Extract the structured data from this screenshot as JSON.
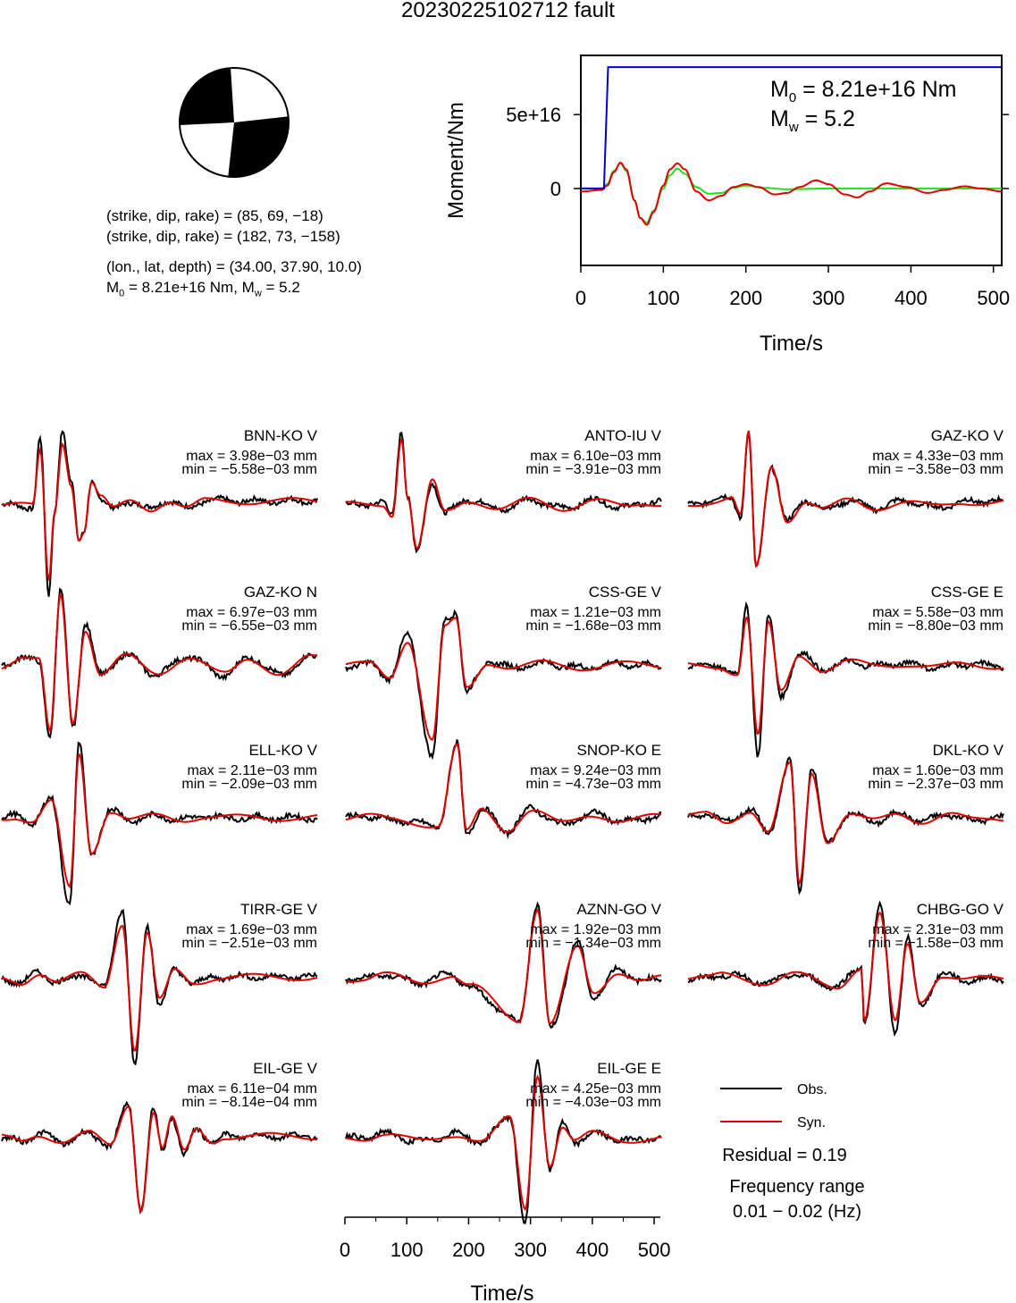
{
  "title": "20230225102712 fault",
  "focal": {
    "line1": "(strike, dip, rake) = (85, 69, −18)",
    "line2": "(strike, dip, rake) = (182, 73, −158)",
    "line3": "(lon., lat, depth) = (34.00, 37.90, 10.0)",
    "m0_text": "M",
    "m0_sub": "0",
    "m0_rest": " = 8.21e+16 Nm, M",
    "mw_sub": "w",
    "mw_rest": " = 5.2"
  },
  "moment_plot": {
    "ylabel": "Moment/Nm",
    "xlabel": "Time/s",
    "m0_label": "M",
    "m0_sub": "0",
    "m0_value": " = 8.21e+16 Nm",
    "mw_label": "M",
    "mw_sub": "w",
    "mw_value": " = 5.2"
  },
  "waveforms_xlabel": "Time/s",
  "legend": {
    "obs": "Obs.",
    "syn": "Syn.",
    "residual": "Residual = 0.19",
    "freq_label": "Frequency range",
    "freq_value": "0.01 − 0.02 (Hz)"
  },
  "colors": {
    "obs": "#000000",
    "syn": "#e00000",
    "moment": "#0000cc",
    "green": "#22dd22"
  },
  "chart_data": [
    {
      "type": "line",
      "title": "",
      "xlabel": "Time/s",
      "ylabel": "Moment/Nm",
      "xlim": [
        0,
        510
      ],
      "ylim": [
        -5.2e+16,
        9e+16
      ],
      "xticks": [
        0,
        100,
        200,
        300,
        400,
        500
      ],
      "yticks": [
        0,
        5e+16
      ],
      "ytick_labels": [
        "0",
        "5e+16"
      ],
      "series": [
        {
          "color": "#0000cc",
          "x": [
            0,
            28,
            33,
            510
          ],
          "y": [
            0,
            0,
            8.21e+16,
            8.21e+16
          ]
        },
        {
          "color": "#e00000",
          "x": [
            0,
            25,
            32,
            40,
            48,
            55,
            65,
            72,
            80,
            88,
            100,
            108,
            117,
            126,
            140,
            155,
            170,
            185,
            200,
            215,
            235,
            250,
            265,
            285,
            300,
            320,
            335,
            350,
            370,
            395,
            420,
            440,
            465,
            485,
            510
          ],
          "y": [
            -2000000000000000.0,
            -1000000000000000.0,
            2000000000000000.0,
            1.1e+16,
            1.75e+16,
            1.3e+16,
            -8000000000000000.0,
            -2e+16,
            -2.45e+16,
            -1.6e+16,
            2000000000000000.0,
            1.3e+16,
            1.7e+16,
            1.3e+16,
            -2000000000000000.0,
            -8000000000000000.0,
            -5000000000000000.0,
            1000000000000000.0,
            3000000000000000.0,
            1000000000000000.0,
            -4000000000000000.0,
            -3000000000000000.0,
            1000000000000000.0,
            5500000000000000.0,
            3000000000000000.0,
            -4000000000000000.0,
            -6000000000000000.0,
            -2000000000000000.0,
            3500000000000000.0,
            1000000000000000.0,
            -3000000000000000.0,
            -1000000000000000.0,
            1500000000000000.0,
            0.0,
            -2000000000000000.0
          ]
        },
        {
          "color": "#22dd22",
          "x": [
            0,
            25,
            32,
            40,
            48,
            55,
            65,
            72,
            80,
            88,
            100,
            108,
            117,
            126,
            140,
            155,
            170,
            185,
            200,
            220,
            250,
            300,
            510
          ],
          "y": [
            0,
            0,
            3000000000000000.0,
            1.2e+16,
            1.7e+16,
            1.2e+16,
            -8000000000000000.0,
            -2e+16,
            -2.3e+16,
            -1.5e+16,
            0.0,
            9000000000000000.0,
            1.35e+16,
            1e+16,
            1000000000000000.0,
            -3500000000000000.0,
            -3000000000000000.0,
            500000000000000.0,
            2000000000000000.0,
            500000000000000.0,
            -500000000000000.0,
            0.0,
            0.0
          ]
        }
      ]
    },
    {
      "type": "line",
      "xlabel": "Time/s",
      "xlim": [
        0,
        510
      ],
      "xticks": [
        0,
        100,
        200,
        300,
        400,
        500
      ],
      "stations": [
        {
          "name": "BNN-KO V",
          "max": "max = 3.98e−03 mm",
          "min": "min = −5.58e−03 mm",
          "peaks": [
            [
              50,
              -0.02
            ],
            [
              62,
              0.72
            ],
            [
              76,
              -1.0
            ],
            [
              85,
              -0.1
            ],
            [
              98,
              0.85
            ],
            [
              112,
              0.3
            ],
            [
              125,
              -0.45
            ],
            [
              133,
              -0.35
            ],
            [
              145,
              0.3
            ],
            [
              160,
              0.1
            ],
            [
              180,
              -0.06
            ],
            [
              210,
              0.05
            ],
            [
              240,
              -0.05
            ],
            [
              270,
              0.06
            ],
            [
              300,
              -0.04
            ],
            [
              330,
              0.05
            ]
          ]
        },
        {
          "name": "ANTO-IU V",
          "max": "max = 6.10e−03 mm",
          "min": "min = −3.91e−03 mm",
          "peaks": [
            [
              60,
              0.02
            ],
            [
              75,
              -0.12
            ],
            [
              90,
              0.9
            ],
            [
              100,
              0.1
            ],
            [
              115,
              -0.6
            ],
            [
              140,
              0.3
            ],
            [
              160,
              -0.1
            ],
            [
              200,
              0.07
            ],
            [
              250,
              -0.05
            ],
            [
              300,
              0.06
            ],
            [
              350,
              -0.04
            ],
            [
              400,
              0.06
            ],
            [
              450,
              -0.03
            ],
            [
              490,
              0.03
            ]
          ]
        },
        {
          "name": "GAZ-KO V",
          "max": "max = 4.33e−03 mm",
          "min": "min = −3.58e−03 mm",
          "peaks": [
            [
              70,
              0.1
            ],
            [
              85,
              -0.15
            ],
            [
              98,
              0.95
            ],
            [
              110,
              -0.85
            ],
            [
              135,
              0.5
            ],
            [
              160,
              -0.2
            ],
            [
              190,
              0.06
            ],
            [
              220,
              -0.05
            ],
            [
              260,
              0.05
            ],
            [
              300,
              -0.04
            ],
            [
              350,
              0.05
            ],
            [
              400,
              -0.03
            ],
            [
              450,
              0.04
            ]
          ]
        },
        {
          "name": "GAZ-KO N",
          "max": "max = 6.97e−03 mm",
          "min": "min = −6.55e−03 mm",
          "peaks": [
            [
              30,
              0.1
            ],
            [
              60,
              0.06
            ],
            [
              78,
              -0.9
            ],
            [
              95,
              0.95
            ],
            [
              115,
              -0.75
            ],
            [
              135,
              0.5
            ],
            [
              160,
              -0.1
            ],
            [
              200,
              0.12
            ],
            [
              250,
              -0.1
            ],
            [
              300,
              0.12
            ],
            [
              360,
              -0.12
            ],
            [
              400,
              0.1
            ],
            [
              450,
              -0.1
            ],
            [
              500,
              0.1
            ]
          ]
        },
        {
          "name": "CSS-GE V",
          "max": "max = 1.21e−03 mm",
          "min": "min = −1.68e−03 mm",
          "peaks": [
            [
              40,
              0.02
            ],
            [
              70,
              -0.15
            ],
            [
              100,
              0.35
            ],
            [
              140,
              -1.0
            ],
            [
              160,
              0.5
            ],
            [
              178,
              0.6
            ],
            [
              195,
              -0.3
            ],
            [
              230,
              0.05
            ],
            [
              270,
              -0.02
            ],
            [
              320,
              0.03
            ],
            [
              380,
              -0.02
            ],
            [
              440,
              0.02
            ],
            [
              500,
              0.0
            ]
          ]
        },
        {
          "name": "CSS-GE E",
          "max": "max = 5.58e−03 mm",
          "min": "min = −8.80e−03 mm",
          "peaks": [
            [
              50,
              0.0
            ],
            [
              80,
              -0.1
            ],
            [
              95,
              0.65
            ],
            [
              113,
              -0.95
            ],
            [
              130,
              0.55
            ],
            [
              150,
              -0.35
            ],
            [
              180,
              0.15
            ],
            [
              220,
              -0.05
            ],
            [
              260,
              0.05
            ],
            [
              300,
              0.0
            ],
            [
              350,
              0.03
            ],
            [
              400,
              -0.02
            ],
            [
              450,
              0.02
            ],
            [
              500,
              0.0
            ]
          ]
        },
        {
          "name": "ELL-KO V",
          "max": "max = 2.11e−03 mm",
          "min": "min = −2.09e−03 mm",
          "peaks": [
            [
              20,
              0.02
            ],
            [
              50,
              -0.05
            ],
            [
              80,
              0.2
            ],
            [
              110,
              -0.95
            ],
            [
              125,
              0.85
            ],
            [
              145,
              -0.45
            ],
            [
              175,
              0.1
            ],
            [
              210,
              -0.03
            ],
            [
              250,
              0.02
            ],
            [
              290,
              -0.02
            ],
            [
              330,
              0.02
            ],
            [
              360,
              0.0
            ]
          ]
        },
        {
          "name": "SNOP-KO E",
          "max": "max = 9.24e−03 mm",
          "min": "min = −4.73e−03 mm",
          "peaks": [
            [
              30,
              0.02
            ],
            [
              80,
              -0.03
            ],
            [
              150,
              -0.1
            ],
            [
              180,
              0.95
            ],
            [
              195,
              -0.2
            ],
            [
              220,
              0.1
            ],
            [
              260,
              -0.15
            ],
            [
              300,
              0.1
            ],
            [
              350,
              -0.08
            ],
            [
              400,
              0.05
            ],
            [
              450,
              -0.05
            ],
            [
              510,
              0.02
            ]
          ]
        },
        {
          "name": "DKL-KO V",
          "max": "max = 1.60e−03 mm",
          "min": "min = −2.37e−03 mm",
          "peaks": [
            [
              30,
              0.05
            ],
            [
              60,
              -0.05
            ],
            [
              100,
              0.1
            ],
            [
              130,
              -0.2
            ],
            [
              165,
              0.7
            ],
            [
              180,
              -0.9
            ],
            [
              200,
              0.6
            ],
            [
              225,
              -0.3
            ],
            [
              260,
              0.05
            ],
            [
              300,
              -0.05
            ],
            [
              340,
              0.05
            ],
            [
              380,
              -0.04
            ],
            [
              420,
              0.04
            ],
            [
              460,
              -0.03
            ],
            [
              500,
              0.0
            ]
          ]
        },
        {
          "name": "TIRR-GE V",
          "max": "max = 1.69e−03 mm",
          "min": "min = −2.51e−03 mm",
          "peaks": [
            [
              30,
              -0.05
            ],
            [
              60,
              0.08
            ],
            [
              90,
              -0.05
            ],
            [
              130,
              0.05
            ],
            [
              165,
              -0.1
            ],
            [
              195,
              0.75
            ],
            [
              215,
              -0.95
            ],
            [
              235,
              0.6
            ],
            [
              255,
              -0.3
            ],
            [
              280,
              0.1
            ],
            [
              310,
              -0.05
            ],
            [
              350,
              0.02
            ]
          ]
        },
        {
          "name": "AZNN-GO V",
          "max": "max = 1.92e−03 mm",
          "min": "min = −1.34e−03 mm",
          "peaks": [
            [
              30,
              0.0
            ],
            [
              60,
              0.05
            ],
            [
              120,
              -0.05
            ],
            [
              170,
              0.05
            ],
            [
              200,
              -0.1
            ],
            [
              280,
              -0.55
            ],
            [
              310,
              0.95
            ],
            [
              330,
              -0.6
            ],
            [
              375,
              0.4
            ],
            [
              400,
              -0.2
            ],
            [
              440,
              0.1
            ],
            [
              480,
              -0.03
            ],
            [
              510,
              0.0
            ]
          ]
        },
        {
          "name": "CHBG-GO V",
          "max": "max = 2.31e−03 mm",
          "min": "min = −1.58e−03 mm",
          "peaks": [
            [
              30,
              0.0
            ],
            [
              60,
              0.05
            ],
            [
              130,
              -0.05
            ],
            [
              170,
              0.05
            ],
            [
              240,
              -0.1
            ],
            [
              280,
              0.15
            ],
            [
              285,
              -0.55
            ],
            [
              310,
              0.85
            ],
            [
              335,
              -0.6
            ],
            [
              355,
              0.45
            ],
            [
              375,
              -0.3
            ],
            [
              410,
              0.05
            ],
            [
              450,
              -0.02
            ],
            [
              500,
              0.0
            ]
          ]
        },
        {
          "name": "EIL-GE V",
          "max": "max = 6.11e−04 mm",
          "min": "min = −8.14e−04 mm",
          "peaks": [
            [
              30,
              -0.05
            ],
            [
              60,
              0.05
            ],
            [
              100,
              -0.05
            ],
            [
              140,
              0.05
            ],
            [
              175,
              -0.1
            ],
            [
              205,
              0.45
            ],
            [
              225,
              -0.95
            ],
            [
              245,
              0.35
            ],
            [
              260,
              -0.15
            ],
            [
              275,
              0.25
            ],
            [
              295,
              -0.2
            ],
            [
              315,
              0.1
            ],
            [
              340,
              -0.05
            ],
            [
              360,
              0.02
            ]
          ]
        },
        {
          "name": "EIL-GE E",
          "max": "max = 4.25e−03 mm",
          "min": "min = −4.03e−03 mm",
          "peaks": [
            [
              30,
              0.0
            ],
            [
              60,
              0.05
            ],
            [
              120,
              -0.05
            ],
            [
              180,
              0.05
            ],
            [
              220,
              -0.05
            ],
            [
              265,
              0.25
            ],
            [
              290,
              -0.95
            ],
            [
              310,
              0.85
            ],
            [
              330,
              -0.35
            ],
            [
              350,
              0.15
            ],
            [
              370,
              -0.05
            ],
            [
              400,
              0.05
            ],
            [
              450,
              -0.03
            ],
            [
              510,
              0.0
            ]
          ]
        }
      ]
    }
  ]
}
